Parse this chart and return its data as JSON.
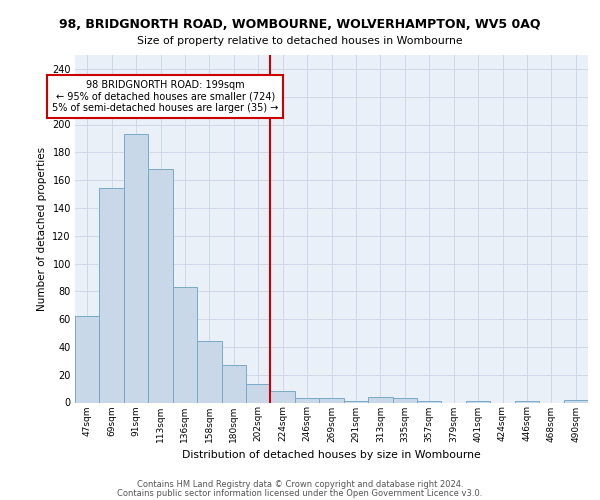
{
  "title": "98, BRIDGNORTH ROAD, WOMBOURNE, WOLVERHAMPTON, WV5 0AQ",
  "subtitle": "Size of property relative to detached houses in Wombourne",
  "xlabel": "Distribution of detached houses by size in Wombourne",
  "ylabel": "Number of detached properties",
  "categories": [
    "47sqm",
    "69sqm",
    "91sqm",
    "113sqm",
    "136sqm",
    "158sqm",
    "180sqm",
    "202sqm",
    "224sqm",
    "246sqm",
    "269sqm",
    "291sqm",
    "313sqm",
    "335sqm",
    "357sqm",
    "379sqm",
    "401sqm",
    "424sqm",
    "446sqm",
    "468sqm",
    "490sqm"
  ],
  "bar_values": [
    62,
    154,
    193,
    168,
    83,
    44,
    27,
    13,
    8,
    3,
    3,
    1,
    4,
    3,
    1,
    0,
    1,
    0,
    1,
    0,
    2
  ],
  "bar_color": "#c8d8e8",
  "bar_edge_color": "#7aaac8",
  "grid_color": "#d0d8e8",
  "bg_color": "#eaf0f8",
  "vline_x_index": 7.5,
  "vline_color": "#cc0000",
  "annotation_title": "98 BRIDGNORTH ROAD: 199sqm",
  "annotation_line1": "← 95% of detached houses are smaller (724)",
  "annotation_line2": "5% of semi-detached houses are larger (35) →",
  "annotation_box_color": "#ffffff",
  "annotation_box_edge": "#cc0000",
  "ylim": [
    0,
    250
  ],
  "yticks": [
    0,
    20,
    40,
    60,
    80,
    100,
    120,
    140,
    160,
    180,
    200,
    220,
    240
  ],
  "footer1": "Contains HM Land Registry data © Crown copyright and database right 2024.",
  "footer2": "Contains public sector information licensed under the Open Government Licence v3.0."
}
